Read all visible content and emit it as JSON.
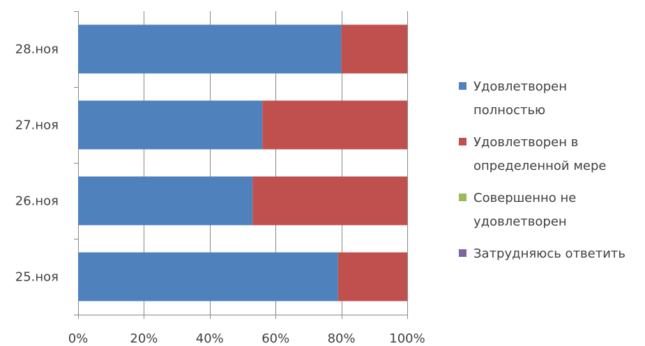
{
  "chart_data": {
    "type": "bar",
    "orientation": "horizontal",
    "stacking": "percent",
    "categories": [
      "28.ноя",
      "27.ноя",
      "26.ноя",
      "25.ноя"
    ],
    "series": [
      {
        "name": "Удовлетворен полностью",
        "legend_lines": [
          "Удовлетворен",
          "полностью"
        ],
        "color": "#4f81bd",
        "values": [
          80,
          56,
          53,
          79
        ]
      },
      {
        "name": "Удовлетворен в определенной мере",
        "legend_lines": [
          "Удовлетворен  в",
          "определенной  мере"
        ],
        "color": "#c0504d",
        "values": [
          20,
          44,
          47,
          21
        ]
      },
      {
        "name": "Совершенно не удовлетворен",
        "legend_lines": [
          "Совершенно  не",
          "удовлетворен"
        ],
        "color": "#9bbb59",
        "values": [
          0,
          0,
          0,
          0
        ]
      },
      {
        "name": "Затрудняюсь ответить",
        "legend_lines": [
          "Затрудняюсь ответить"
        ],
        "color": "#8064a2",
        "values": [
          0,
          0,
          0,
          0
        ]
      }
    ],
    "x_ticks": [
      "0%",
      "20%",
      "40%",
      "60%",
      "80%",
      "100%"
    ],
    "xlim": [
      0,
      100
    ],
    "title": "",
    "xlabel": "",
    "ylabel": "",
    "grid": true,
    "legend_position": "right",
    "colors": {
      "gridline": "#868686",
      "text": "#404040"
    }
  }
}
